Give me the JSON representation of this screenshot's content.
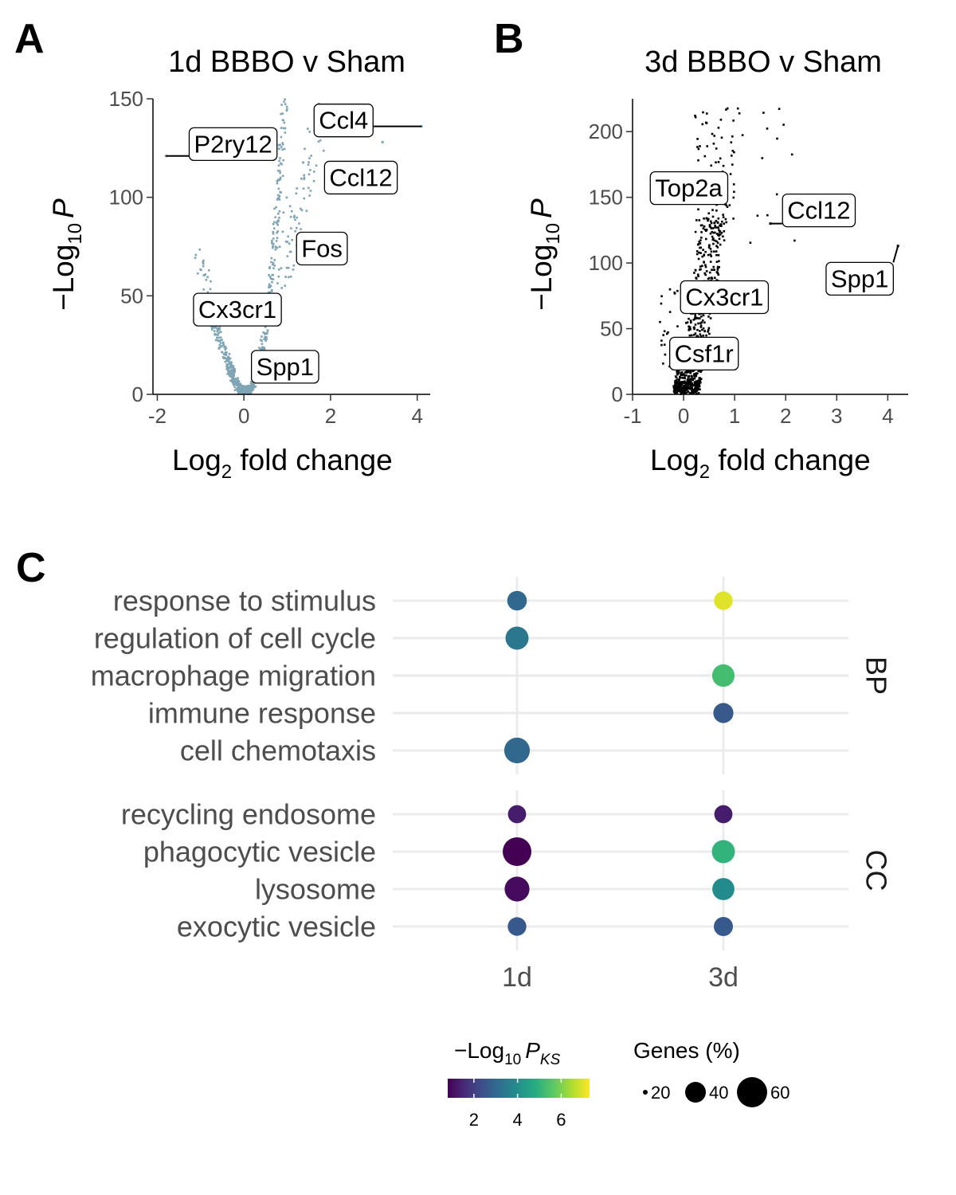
{
  "panels": {
    "a": {
      "letter": "A",
      "title": "1d BBBO v Sham"
    },
    "b": {
      "letter": "B",
      "title": "3d BBBO v Sham"
    },
    "c": {
      "letter": "C"
    }
  },
  "volcano_axis": {
    "xlabel_main": "Log",
    "xlabel_sub": "2",
    "xlabel_rest": " fold change",
    "ylabel_pre": "−Log",
    "ylabel_sub": "10",
    "ylabel_var": "P"
  },
  "dotplot_legend": {
    "color_title_pre": "−Log",
    "color_title_sub": "10",
    "color_title_var": "P",
    "color_title_varsub": "KS",
    "color_ticks": [
      "2",
      "4",
      "6"
    ],
    "size_title": "Genes (%)",
    "size_ticks": [
      "20",
      "40",
      "60"
    ]
  },
  "chart_data": [
    {
      "type": "scatter",
      "panel": "A",
      "title": "1d BBBO v Sham",
      "xlabel": "Log2 fold change",
      "ylabel": "−Log10 P",
      "xlim": [
        -2.1,
        4.3
      ],
      "ylim": [
        0,
        150
      ],
      "x_ticks": [
        -2,
        0,
        2,
        4
      ],
      "y_ticks": [
        0,
        50,
        100,
        150
      ],
      "point_color": "#7fa5b5",
      "grid": false,
      "labeled_genes": [
        {
          "gene": "Ccl4",
          "x": 4.1,
          "y": 136,
          "label_x": 2.3,
          "label_y": 139
        },
        {
          "gene": "Ccl12",
          "x": 3.2,
          "y": 128,
          "label_x": 2.7,
          "label_y": 110
        },
        {
          "gene": "P2ry12",
          "x": -1.8,
          "y": 121,
          "label_x": -0.25,
          "label_y": 127
        },
        {
          "gene": "Fos",
          "x": 1.9,
          "y": 73,
          "label_x": 1.8,
          "label_y": 74
        },
        {
          "gene": "Cx3cr1",
          "x": -0.6,
          "y": 40,
          "label_x": -0.15,
          "label_y": 43
        },
        {
          "gene": "Spp1",
          "x": 0.9,
          "y": 14,
          "label_x": 0.95,
          "label_y": 14
        }
      ]
    },
    {
      "type": "scatter",
      "panel": "B",
      "title": "3d BBBO v Sham",
      "xlabel": "Log2 fold change",
      "ylabel": "−Log10 P",
      "xlim": [
        -1,
        4.4
      ],
      "ylim": [
        0,
        225
      ],
      "x_ticks": [
        -1,
        0,
        1,
        2,
        3,
        4
      ],
      "y_ticks": [
        0,
        50,
        100,
        150,
        200
      ],
      "point_color": "#000000",
      "grid": false,
      "labeled_genes": [
        {
          "gene": "Top2a",
          "x": 0.5,
          "y": 155,
          "label_x": 0.1,
          "label_y": 157
        },
        {
          "gene": "Ccl12",
          "x": 1.7,
          "y": 130,
          "label_x": 2.65,
          "label_y": 140
        },
        {
          "gene": "Spp1",
          "x": 4.2,
          "y": 113,
          "label_x": 3.45,
          "label_y": 88
        },
        {
          "gene": "Cx3cr1",
          "x": 0.4,
          "y": 72,
          "label_x": 0.8,
          "label_y": 74
        },
        {
          "gene": "Csf1r",
          "x": 0.2,
          "y": 32,
          "label_x": 0.4,
          "label_y": 31
        }
      ]
    },
    {
      "type": "scatter",
      "panel": "C",
      "subtype": "dot-plot",
      "x_categories": [
        "1d",
        "3d"
      ],
      "grid": true,
      "facets": [
        {
          "name": "BP",
          "terms": [
            "response to stimulus",
            "regulation of cell cycle",
            "macrophage migration",
            "immune response",
            "cell chemotaxis"
          ],
          "points": [
            {
              "term": "response to stimulus",
              "x": "1d",
              "neg_log10_p_ks": 3.0,
              "genes_pct": 24
            },
            {
              "term": "response to stimulus",
              "x": "3d",
              "neg_log10_p_ks": 7.0,
              "genes_pct": 20
            },
            {
              "term": "regulation of cell cycle",
              "x": "1d",
              "neg_log10_p_ks": 3.4,
              "genes_pct": 40
            },
            {
              "term": "macrophage migration",
              "x": "3d",
              "neg_log10_p_ks": 5.3,
              "genes_pct": 37
            },
            {
              "term": "immune response",
              "x": "3d",
              "neg_log10_p_ks": 2.6,
              "genes_pct": 26
            },
            {
              "term": "cell chemotaxis",
              "x": "1d",
              "neg_log10_p_ks": 3.0,
              "genes_pct": 55
            }
          ]
        },
        {
          "name": "CC",
          "terms": [
            "recycling endosome",
            "phagocytic vesicle",
            "lysosome",
            "exocytic vesicle"
          ],
          "points": [
            {
              "term": "recycling endosome",
              "x": "1d",
              "neg_log10_p_ks": 1.3,
              "genes_pct": 18
            },
            {
              "term": "recycling endosome",
              "x": "3d",
              "neg_log10_p_ks": 1.3,
              "genes_pct": 18
            },
            {
              "term": "phagocytic vesicle",
              "x": "1d",
              "neg_log10_p_ks": 0.8,
              "genes_pct": 75
            },
            {
              "term": "phagocytic vesicle",
              "x": "3d",
              "neg_log10_p_ks": 5.0,
              "genes_pct": 40
            },
            {
              "term": "lysosome",
              "x": "1d",
              "neg_log10_p_ks": 1.0,
              "genes_pct": 50
            },
            {
              "term": "lysosome",
              "x": "3d",
              "neg_log10_p_ks": 3.9,
              "genes_pct": 35
            },
            {
              "term": "exocytic vesicle",
              "x": "1d",
              "neg_log10_p_ks": 2.6,
              "genes_pct": 20
            },
            {
              "term": "exocytic vesicle",
              "x": "3d",
              "neg_log10_p_ks": 2.6,
              "genes_pct": 22
            }
          ]
        }
      ],
      "color_scale": {
        "name": "viridis",
        "title": "−Log10 P_KS",
        "domain": [
          0.8,
          7.3
        ],
        "ticks": [
          2,
          4,
          6
        ]
      },
      "size_scale": {
        "title": "Genes (%)",
        "ticks": [
          20,
          40,
          60
        ]
      }
    }
  ]
}
